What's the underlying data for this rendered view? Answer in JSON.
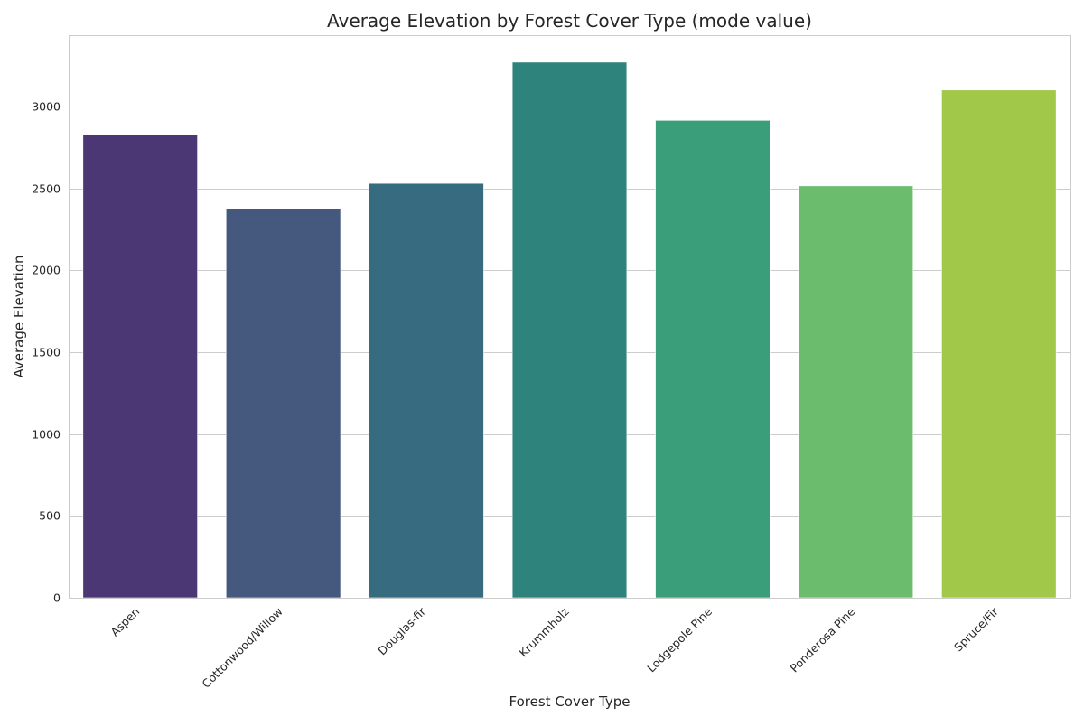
{
  "chart_data": {
    "type": "bar",
    "title": "Average Elevation by Forest Cover Type (mode value)",
    "xlabel": "Forest Cover Type",
    "ylabel": "Average Elevation",
    "categories": [
      "Aspen",
      "Cottonwood/Willow",
      "Douglas-fir",
      "Krummholz",
      "Lodgepole Pine",
      "Ponderosa Pine",
      "Spruce/Fir"
    ],
    "values": [
      2830,
      2375,
      2530,
      3270,
      2915,
      2515,
      3100
    ],
    "colors": [
      "#4a3773",
      "#45597f",
      "#376c80",
      "#2f837d",
      "#3a9e7a",
      "#6bbc6c",
      "#a2c84a"
    ],
    "ylim": [
      0,
      3435
    ],
    "yticks": [
      0,
      500,
      1000,
      1500,
      2000,
      2500,
      3000
    ],
    "grid": true,
    "legend": "none"
  }
}
